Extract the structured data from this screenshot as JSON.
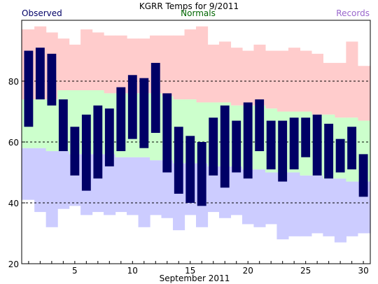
{
  "chart_data": {
    "type": "bar",
    "title": "KGRR Temps for 9/2011",
    "xlabel": "September 2011",
    "ylabel": "",
    "ylim": [
      20,
      100
    ],
    "yticks": [
      20,
      40,
      60,
      80
    ],
    "xticks": [
      5,
      10,
      15,
      20,
      25,
      30
    ],
    "gridlines_y": [
      40,
      60,
      80
    ],
    "grid_style": "dashed",
    "legend": [
      {
        "label": "Observed",
        "color": "#000066",
        "placement": "top-left"
      },
      {
        "label": "Normals",
        "color": "#006600",
        "placement": "top-center"
      },
      {
        "label": "Records",
        "color": "#9966cc",
        "placement": "top-right"
      }
    ],
    "colors": {
      "observed": "#000066",
      "normals": "#ccffcc",
      "record_high": "#ffcccc",
      "record_low": "#ccccff"
    },
    "days": [
      1,
      2,
      3,
      4,
      5,
      6,
      7,
      8,
      9,
      10,
      11,
      12,
      13,
      14,
      15,
      16,
      17,
      18,
      19,
      20,
      21,
      22,
      23,
      24,
      25,
      26,
      27,
      28,
      29,
      30
    ],
    "series": [
      {
        "name": "Observed",
        "high": [
          90,
          91,
          89,
          74,
          65,
          69,
          72,
          71,
          78,
          82,
          81,
          86,
          76,
          65,
          62,
          60,
          68,
          72,
          67,
          73,
          74,
          67,
          67,
          68,
          68,
          69,
          66,
          61,
          65,
          56
        ],
        "low": [
          65,
          74,
          72,
          57,
          49,
          44,
          48,
          52,
          57,
          61,
          58,
          63,
          50,
          43,
          40,
          39,
          49,
          45,
          50,
          48,
          57,
          51,
          47,
          51,
          55,
          49,
          48,
          50,
          51,
          42
        ]
      },
      {
        "name": "Normals",
        "high": [
          74,
          74,
          74,
          77,
          77,
          77,
          77,
          76,
          76,
          76,
          76,
          76,
          75,
          74,
          74,
          73,
          73,
          73,
          72,
          72,
          72,
          71,
          70,
          70,
          70,
          69,
          69,
          68,
          68,
          67
        ],
        "low": [
          58,
          58,
          57,
          57,
          56,
          56,
          56,
          56,
          55,
          55,
          55,
          54,
          54,
          53,
          53,
          53,
          52,
          52,
          52,
          51,
          51,
          50,
          50,
          50,
          49,
          49,
          48,
          48,
          47,
          47
        ]
      },
      {
        "name": "Records",
        "high": [
          97,
          98,
          96,
          94,
          92,
          97,
          96,
          95,
          95,
          94,
          94,
          95,
          95,
          95,
          97,
          98,
          92,
          93,
          91,
          90,
          92,
          90,
          90,
          91,
          90,
          89,
          86,
          86,
          93,
          85
        ],
        "low": [
          41,
          37,
          32,
          38,
          39,
          36,
          37,
          36,
          37,
          36,
          32,
          36,
          35,
          31,
          36,
          32,
          37,
          35,
          36,
          33,
          32,
          33,
          28,
          29,
          29,
          30,
          29,
          27,
          29,
          30
        ]
      }
    ]
  }
}
